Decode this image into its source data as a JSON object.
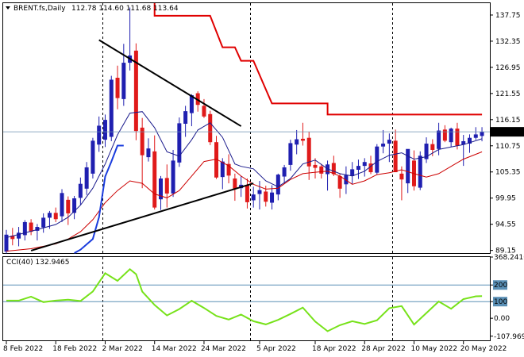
{
  "header": {
    "symbol": "BRENT.fs,Daily",
    "ohlc": "112.78 114.60 111.68 113.64"
  },
  "indicator_header": {
    "label": "CCI(40) 132.9465"
  },
  "colors": {
    "up_candle": "#1f1fb0",
    "down_candle": "#e01a1a",
    "trendline": "#000000",
    "sma_fast": "#1a1a8c",
    "sma_slow": "#cc0000",
    "step_line": "#e00000",
    "slow_step_line": "#1a3cdd",
    "cci_line": "#77e21a",
    "level_line": "#5a8fb5",
    "current_price_bg": "#000000",
    "current_price_fg": "#ffffff"
  },
  "chart_data": [
    {
      "type": "candlestick",
      "title": "BRENT.fs,Daily",
      "current_price": 113.64,
      "y_ticks": [
        89.15,
        94.55,
        99.95,
        105.35,
        110.75,
        116.15,
        121.55,
        126.95,
        132.35,
        137.75
      ],
      "ylim": [
        88.6,
        140.2
      ],
      "x_labels": [
        "8 Feb 2022",
        "18 Feb 2022",
        "2 Mar 2022",
        "14 Mar 2022",
        "24 Mar 2022",
        "5 Apr 2022",
        "18 Apr 2022",
        "28 Apr 2022",
        "10 May 2022",
        "20 May 2022"
      ],
      "x_label_index": [
        0,
        8,
        16,
        24,
        32,
        41,
        50,
        58,
        66,
        74
      ],
      "vertical_dashes_index": [
        -2,
        15,
        39,
        62
      ],
      "candles": [
        [
          88.9,
          93.4,
          88.5,
          92.4
        ],
        [
          92.2,
          93.8,
          90.2,
          91.5
        ],
        [
          91.6,
          94.0,
          90.0,
          92.8
        ],
        [
          92.3,
          95.4,
          91.2,
          95.0
        ],
        [
          94.9,
          95.6,
          92.3,
          93.0
        ],
        [
          93.2,
          94.6,
          91.2,
          94.0
        ],
        [
          93.9,
          96.8,
          92.8,
          95.9
        ],
        [
          95.9,
          97.3,
          93.6,
          96.9
        ],
        [
          96.9,
          98.0,
          95.0,
          95.6
        ],
        [
          96.2,
          101.8,
          95.0,
          101.0
        ],
        [
          99.6,
          100.3,
          94.4,
          96.8
        ],
        [
          96.9,
          100.4,
          95.6,
          99.9
        ],
        [
          100.0,
          104.2,
          98.6,
          102.9
        ],
        [
          101.9,
          107.4,
          100.6,
          106.3
        ],
        [
          105.0,
          112.4,
          104.0,
          111.8
        ],
        [
          111.0,
          116.8,
          109.5,
          114.9
        ],
        [
          112.0,
          117.2,
          110.5,
          116.1
        ],
        [
          112.6,
          125.2,
          111.7,
          124.4
        ],
        [
          124.8,
          127.3,
          118.3,
          120.6
        ],
        [
          120.4,
          131.8,
          119.0,
          127.9
        ],
        [
          127.9,
          139.3,
          126.3,
          129.4
        ],
        [
          130.4,
          131.9,
          111.9,
          113.8
        ],
        [
          114.5,
          116.5,
          102.0,
          108.8
        ],
        [
          108.4,
          112.3,
          107.5,
          110.2
        ],
        [
          109.6,
          112.9,
          97.6,
          98.0
        ],
        [
          99.7,
          104.5,
          97.5,
          104.0
        ],
        [
          104.1,
          106.9,
          98.0,
          100.9
        ],
        [
          100.9,
          109.9,
          100.2,
          107.7
        ],
        [
          107.3,
          116.6,
          106.4,
          115.4
        ],
        [
          115.3,
          119.0,
          112.6,
          117.9
        ],
        [
          117.5,
          121.4,
          114.8,
          121.2
        ],
        [
          121.6,
          122.0,
          117.8,
          119.2
        ],
        [
          119.0,
          120.4,
          116.5,
          116.8
        ],
        [
          117.3,
          118.0,
          110.9,
          111.5
        ],
        [
          111.5,
          112.8,
          103.9,
          104.2
        ],
        [
          104.3,
          108.2,
          101.8,
          107.5
        ],
        [
          107.0,
          109.0,
          103.0,
          104.6
        ],
        [
          104.0,
          105.0,
          99.4,
          101.8
        ],
        [
          102.0,
          104.5,
          100.2,
          102.7
        ],
        [
          102.6,
          104.0,
          97.8,
          99.1
        ],
        [
          99.5,
          102.3,
          98.0,
          100.7
        ],
        [
          100.8,
          103.5,
          97.6,
          101.6
        ],
        [
          101.3,
          102.5,
          98.2,
          99.2
        ],
        [
          99.0,
          102.6,
          97.6,
          101.1
        ],
        [
          100.7,
          105.0,
          99.5,
          104.8
        ],
        [
          104.4,
          106.8,
          103.0,
          106.3
        ],
        [
          106.8,
          112.0,
          105.6,
          111.3
        ],
        [
          111.0,
          114.0,
          109.0,
          112.1
        ],
        [
          112.2,
          115.5,
          110.8,
          111.8
        ],
        [
          112.4,
          113.6,
          103.7,
          106.5
        ],
        [
          106.8,
          108.2,
          104.0,
          106.2
        ],
        [
          106.5,
          107.0,
          104.0,
          105.0
        ],
        [
          104.9,
          107.7,
          101.5,
          106.9
        ],
        [
          107.2,
          108.7,
          104.5,
          104.9
        ],
        [
          104.5,
          105.0,
          100.0,
          101.9
        ],
        [
          102.8,
          106.5,
          100.8,
          104.7
        ],
        [
          104.5,
          107.4,
          102.8,
          105.9
        ],
        [
          105.8,
          107.9,
          103.9,
          106.6
        ],
        [
          106.6,
          108.2,
          104.4,
          107.4
        ],
        [
          107.1,
          108.7,
          104.9,
          105.3
        ],
        [
          105.2,
          111.1,
          104.8,
          110.6
        ],
        [
          110.6,
          114.0,
          109.2,
          111.2
        ],
        [
          111.2,
          113.3,
          107.4,
          112.0
        ],
        [
          111.8,
          114.1,
          105.6,
          105.3
        ],
        [
          105.0,
          106.5,
          99.5,
          103.8
        ],
        [
          103.0,
          110.0,
          101.0,
          110.1
        ],
        [
          107.7,
          109.8,
          101.5,
          102.4
        ],
        [
          102.1,
          109.6,
          101.6,
          108.7
        ],
        [
          108.0,
          112.5,
          107.2,
          111.2
        ],
        [
          111.1,
          112.1,
          108.6,
          109.9
        ],
        [
          110.1,
          115.5,
          108.8,
          113.9
        ],
        [
          114.1,
          115.0,
          111.5,
          111.8
        ],
        [
          111.5,
          114.5,
          110.5,
          114.3
        ],
        [
          114.3,
          115.5,
          110.0,
          110.8
        ],
        [
          111.0,
          113.0,
          106.6,
          111.7
        ],
        [
          111.2,
          113.1,
          109.3,
          112.4
        ],
        [
          112.4,
          114.6,
          112.0,
          113.1
        ],
        [
          112.78,
          114.6,
          111.68,
          113.64
        ]
      ],
      "sma_fast": [
        [
          0,
          91.8
        ],
        [
          4,
          93.1
        ],
        [
          8,
          94.5
        ],
        [
          10,
          96.0
        ],
        [
          12,
          98.5
        ],
        [
          14,
          102.0
        ],
        [
          16,
          107.0
        ],
        [
          18,
          113.0
        ],
        [
          20,
          117.5
        ],
        [
          22,
          117.8
        ],
        [
          24,
          114.5
        ],
        [
          26,
          109.5
        ],
        [
          28,
          108.6
        ],
        [
          30,
          112.0
        ],
        [
          31,
          114.0
        ],
        [
          33,
          115.5
        ],
        [
          35,
          112.5
        ],
        [
          37,
          107.0
        ],
        [
          38,
          106.5
        ],
        [
          40,
          106.0
        ],
        [
          42,
          103.5
        ],
        [
          44,
          102.3
        ],
        [
          46,
          104.0
        ],
        [
          48,
          107.0
        ],
        [
          50,
          107.8
        ],
        [
          52,
          106.0
        ],
        [
          54,
          105.0
        ],
        [
          56,
          104.5
        ],
        [
          58,
          105.5
        ],
        [
          60,
          107.5
        ],
        [
          62,
          108.8
        ],
        [
          64,
          109.3
        ],
        [
          66,
          108.0
        ],
        [
          68,
          108.5
        ],
        [
          70,
          110.0
        ],
        [
          72,
          110.5
        ],
        [
          74,
          111.0
        ],
        [
          77,
          112.2
        ]
      ],
      "sma_slow": [
        [
          0,
          89.0
        ],
        [
          4,
          89.5
        ],
        [
          8,
          90.5
        ],
        [
          10,
          91.5
        ],
        [
          12,
          93.0
        ],
        [
          14,
          95.5
        ],
        [
          16,
          99.0
        ],
        [
          18,
          101.5
        ],
        [
          20,
          103.5
        ],
        [
          22,
          103.0
        ],
        [
          24,
          100.8
        ],
        [
          26,
          100.0
        ],
        [
          28,
          101.5
        ],
        [
          30,
          104.5
        ],
        [
          32,
          107.5
        ],
        [
          34,
          108.0
        ],
        [
          36,
          106.6
        ],
        [
          38,
          104.5
        ],
        [
          40,
          102.8
        ],
        [
          42,
          101.8
        ],
        [
          44,
          102.0
        ],
        [
          46,
          103.8
        ],
        [
          48,
          105.0
        ],
        [
          50,
          105.3
        ],
        [
          52,
          105.5
        ],
        [
          54,
          104.5
        ],
        [
          56,
          102.8
        ],
        [
          58,
          103.5
        ],
        [
          60,
          104.8
        ],
        [
          62,
          105.2
        ],
        [
          64,
          105.8
        ],
        [
          66,
          105.0
        ],
        [
          68,
          104.3
        ],
        [
          70,
          105.0
        ],
        [
          72,
          106.5
        ],
        [
          74,
          108.0
        ],
        [
          77,
          109.5
        ]
      ],
      "step_line": [
        [
          24,
          140.2
        ],
        [
          24,
          137.6
        ],
        [
          33,
          137.6
        ],
        [
          35,
          131.1
        ],
        [
          37,
          131.1
        ],
        [
          38,
          128.3
        ],
        [
          40,
          128.3
        ],
        [
          43,
          119.5
        ],
        [
          51,
          119.5
        ],
        [
          51,
          119.5
        ],
        [
          52,
          119.5
        ],
        [
          52,
          117.2
        ],
        [
          76,
          117.2
        ],
        [
          77,
          117.2
        ]
      ],
      "slow_step_line": [
        [
          11,
          88.6
        ],
        [
          12,
          89.3
        ],
        [
          14,
          91.5
        ],
        [
          15,
          96.0
        ],
        [
          16,
          104.4
        ],
        [
          17,
          107.5
        ],
        [
          18,
          110.8
        ],
        [
          19,
          110.8
        ]
      ],
      "trendlines": [
        [
          [
            15,
            132.6
          ],
          [
            38,
            114.8
          ]
        ],
        [
          [
            4,
            89.1
          ],
          [
            40,
            103.0
          ]
        ]
      ]
    },
    {
      "type": "line",
      "title": "CCI(40) 132.9465",
      "series_name": "CCI(40)",
      "y_ticks": [
        368.2416,
        200,
        100,
        0.0,
        -107.969
      ],
      "ylim": [
        -133.0,
        368.2416
      ],
      "levels": [
        200,
        100
      ],
      "values": [
        [
          0,
          106
        ],
        [
          2,
          106
        ],
        [
          4,
          130
        ],
        [
          6,
          97
        ],
        [
          8,
          106
        ],
        [
          10,
          112
        ],
        [
          12,
          104
        ],
        [
          14,
          161
        ],
        [
          16,
          271
        ],
        [
          18,
          225
        ],
        [
          20,
          295
        ],
        [
          21,
          265
        ],
        [
          22,
          160
        ],
        [
          24,
          80
        ],
        [
          26,
          17
        ],
        [
          28,
          55
        ],
        [
          30,
          105
        ],
        [
          32,
          62
        ],
        [
          34,
          14
        ],
        [
          36,
          -8
        ],
        [
          38,
          22
        ],
        [
          40,
          -18
        ],
        [
          42,
          -37
        ],
        [
          44,
          -10
        ],
        [
          46,
          26
        ],
        [
          48,
          64
        ],
        [
          50,
          -20
        ],
        [
          52,
          -78
        ],
        [
          54,
          -42
        ],
        [
          56,
          -18
        ],
        [
          58,
          -34
        ],
        [
          60,
          -12
        ],
        [
          62,
          61
        ],
        [
          64,
          73
        ],
        [
          66,
          -38
        ],
        [
          68,
          31
        ],
        [
          70,
          101
        ],
        [
          72,
          57
        ],
        [
          74,
          115
        ],
        [
          76,
          132
        ],
        [
          77,
          133
        ]
      ]
    }
  ]
}
